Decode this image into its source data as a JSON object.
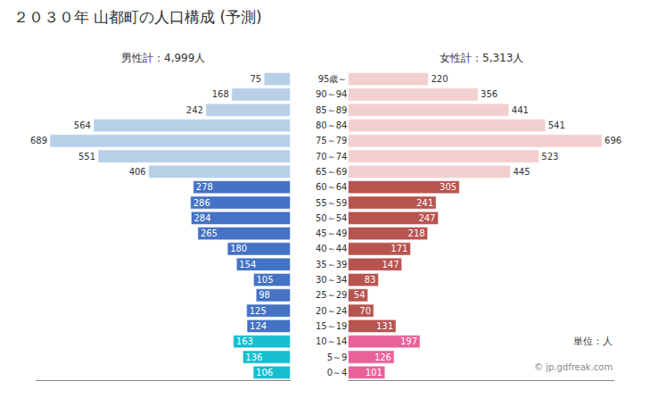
{
  "chart_data": {
    "type": "bar",
    "orientation": "horizontal",
    "title": "２０３０年 山都町の人口構成 (予測)",
    "categories": [
      "0～4",
      "5～9",
      "10～14",
      "15～19",
      "20～24",
      "25～29",
      "30～34",
      "35～39",
      "40～44",
      "45～49",
      "50～54",
      "55～59",
      "60～64",
      "65～69",
      "70～74",
      "75～79",
      "80～84",
      "85～89",
      "90～94",
      "95歳～"
    ],
    "series": [
      {
        "name": "男性計：4,999人",
        "colors": [
          "#17becf",
          "#17becf",
          "#17becf",
          "#4472c4",
          "#4472c4",
          "#4472c4",
          "#4472c4",
          "#4472c4",
          "#4472c4",
          "#4472c4",
          "#4472c4",
          "#4472c4",
          "#4472c4",
          "#b8cfe8",
          "#b8cfe8",
          "#b8cfe8",
          "#b8cfe8",
          "#b8cfe8",
          "#b8cfe8",
          "#b8cfe8"
        ],
        "values": [
          106,
          136,
          163,
          124,
          125,
          98,
          105,
          154,
          180,
          265,
          284,
          286,
          278,
          406,
          551,
          689,
          564,
          242,
          168,
          75
        ]
      },
      {
        "name": "女性計：5,313人",
        "colors": [
          "#e8629a",
          "#e8629a",
          "#e8629a",
          "#b85450",
          "#b85450",
          "#b85450",
          "#b85450",
          "#b85450",
          "#b85450",
          "#b85450",
          "#b85450",
          "#b85450",
          "#b85450",
          "#f2d0d0",
          "#f2d0d0",
          "#f2d0d0",
          "#f2d0d0",
          "#f2d0d0",
          "#f2d0d0",
          "#f2d0d0"
        ],
        "values": [
          101,
          126,
          197,
          131,
          70,
          54,
          83,
          147,
          171,
          218,
          247,
          241,
          305,
          445,
          523,
          696,
          541,
          441,
          356,
          220
        ]
      }
    ],
    "xlim": [
      0,
      730
    ],
    "xticks": [],
    "tick_labels": "y",
    "data_labels": true,
    "grid": false,
    "annotations": [
      "単位：人",
      "© jp.gdfreak.com"
    ]
  }
}
